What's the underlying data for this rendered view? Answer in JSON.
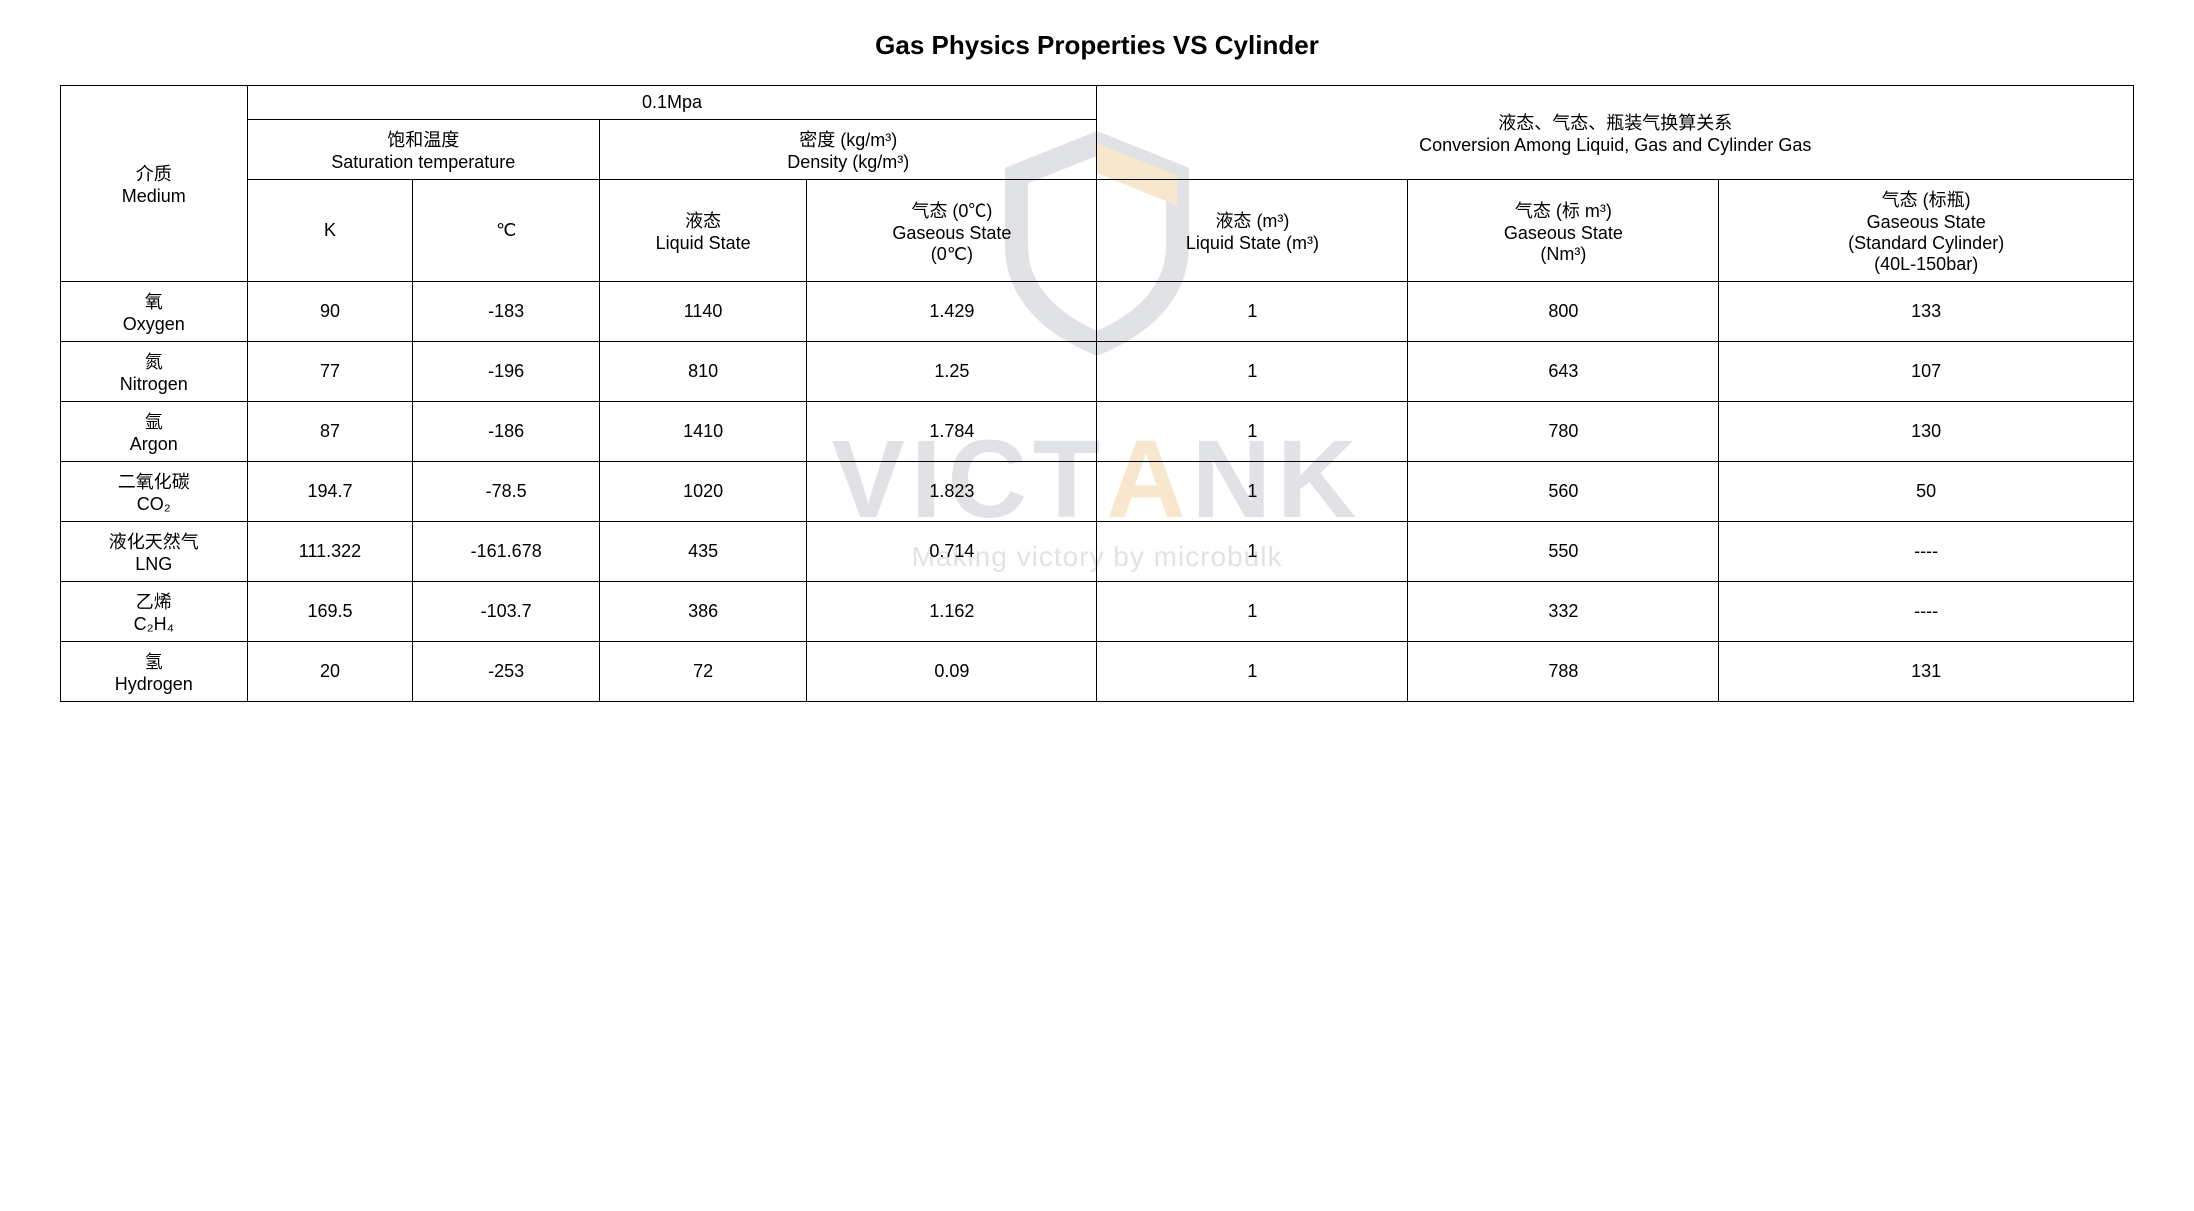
{
  "title": "Gas Physics Properties VS Cylinder",
  "headers": {
    "medium_cn": "介质",
    "medium_en": "Medium",
    "pressure": "0.1Mpa",
    "sat_temp_cn": "饱和温度",
    "sat_temp_en": "Saturation temperature",
    "density_cn": "密度 (kg/m³)",
    "density_en": "Density (kg/m³)",
    "conversion_cn": "液态、气态、瓶装气换算关系",
    "conversion_en": "Conversion Among Liquid, Gas and Cylinder Gas",
    "k": "K",
    "c": "℃",
    "liquid_cn": "液态",
    "liquid_en": "Liquid State",
    "gaseous_cn": "气态 (0℃)",
    "gaseous_en1": "Gaseous State",
    "gaseous_en2": "(0℃)",
    "conv_liquid_cn": "液态 (m³)",
    "conv_liquid_en": "Liquid State (m³)",
    "conv_gas_cn": "气态 (标 m³)",
    "conv_gas_en1": "Gaseous State",
    "conv_gas_en2": "(Nm³)",
    "conv_cyl_cn": "气态 (标瓶)",
    "conv_cyl_en1": "Gaseous State",
    "conv_cyl_en2": "(Standard Cylinder)",
    "conv_cyl_en3": "(40L-150bar)"
  },
  "rows": [
    {
      "name_cn": "氧",
      "name_en": "Oxygen",
      "k": "90",
      "c": "-183",
      "liq": "1140",
      "gas": "1.429",
      "cliq": "1",
      "cgas": "800",
      "ccyl": "133"
    },
    {
      "name_cn": "氮",
      "name_en": "Nitrogen",
      "k": "77",
      "c": "-196",
      "liq": "810",
      "gas": "1.25",
      "cliq": "1",
      "cgas": "643",
      "ccyl": "107"
    },
    {
      "name_cn": "氩",
      "name_en": "Argon",
      "k": "87",
      "c": "-186",
      "liq": "1410",
      "gas": "1.784",
      "cliq": "1",
      "cgas": "780",
      "ccyl": "130"
    },
    {
      "name_cn": "二氧化碳",
      "name_en": "CO₂",
      "k": "194.7",
      "c": "-78.5",
      "liq": "1020",
      "gas": "1.823",
      "cliq": "1",
      "cgas": "560",
      "ccyl": "50"
    },
    {
      "name_cn": "液化天然气",
      "name_en": "LNG",
      "k": "111.322",
      "c": "-161.678",
      "liq": "435",
      "gas": "0.714",
      "cliq": "1",
      "cgas": "550",
      "ccyl": "----"
    },
    {
      "name_cn": "乙烯",
      "name_en": "C₂H₄",
      "k": "169.5",
      "c": "-103.7",
      "liq": "386",
      "gas": "1.162",
      "cliq": "1",
      "cgas": "332",
      "ccyl": "----"
    },
    {
      "name_cn": "氢",
      "name_en": "Hydrogen",
      "k": "20",
      "c": "-253",
      "liq": "72",
      "gas": "0.09",
      "cliq": "1",
      "cgas": "788",
      "ccyl": "131"
    }
  ],
  "watermark": {
    "brand_left": "VICT",
    "brand_accent": "A",
    "brand_right": "NK",
    "tagline": "Making victory by microbulk",
    "shield_outer": "#8a8f9c",
    "shield_accent": "#e3a23a"
  },
  "style": {
    "border_color": "#000000",
    "background": "#ffffff",
    "text_color": "#000000",
    "title_fontsize": 26,
    "cell_fontsize": 18
  }
}
